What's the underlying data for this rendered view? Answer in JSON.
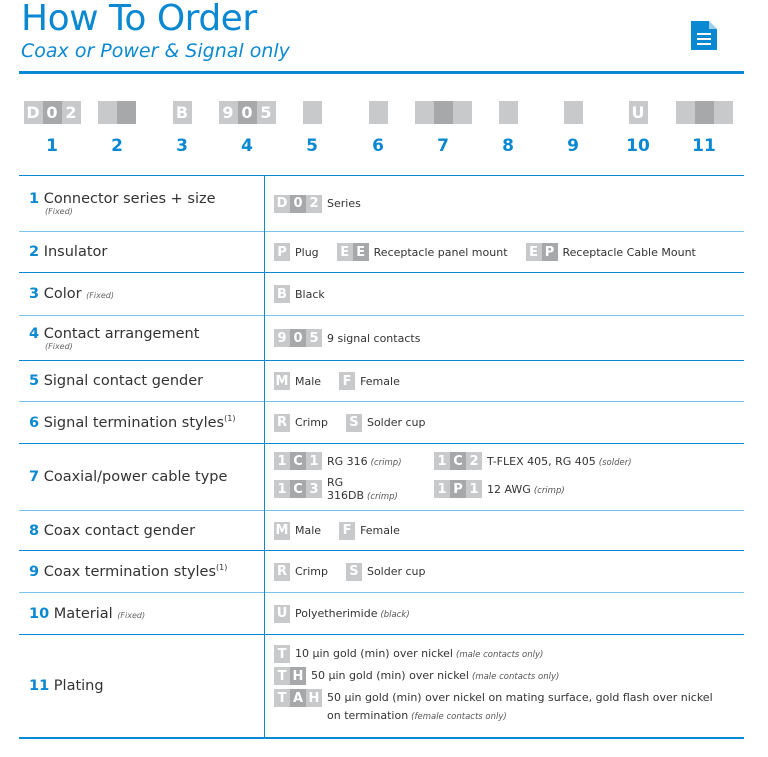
{
  "header": {
    "title": "How To Order",
    "subtitle": "Coax or Power & Signal only",
    "icon": "document-icon"
  },
  "colors": {
    "accent": "#0a89d2",
    "cell_light": "#c8c9cb",
    "cell_dark": "#a7a8aa"
  },
  "code_groups": [
    {
      "number": "1",
      "cells": [
        "D",
        "0",
        "2"
      ]
    },
    {
      "number": "2",
      "cells": [
        "",
        ""
      ]
    },
    {
      "number": "3",
      "cells": [
        "B"
      ]
    },
    {
      "number": "4",
      "cells": [
        "9",
        "0",
        "5"
      ]
    },
    {
      "number": "5",
      "cells": [
        ""
      ]
    },
    {
      "number": "6",
      "cells": [
        ""
      ]
    },
    {
      "number": "7",
      "cells": [
        "",
        "",
        ""
      ]
    },
    {
      "number": "8",
      "cells": [
        ""
      ]
    },
    {
      "number": "9",
      "cells": [
        ""
      ]
    },
    {
      "number": "10",
      "cells": [
        "U"
      ]
    },
    {
      "number": "11",
      "cells": [
        "",
        "",
        ""
      ]
    }
  ],
  "rows": [
    {
      "number": "1",
      "label": "Connector series + size",
      "fixed": "(Fixed)",
      "options": [
        {
          "code": [
            "D",
            "0",
            "2"
          ],
          "text": "Series"
        }
      ]
    },
    {
      "number": "2",
      "label": "Insulator",
      "options": [
        {
          "code": [
            "P"
          ],
          "text": "Plug"
        },
        {
          "code": [
            "E",
            "E"
          ],
          "text": "Receptacle panel mount"
        },
        {
          "code": [
            "E",
            "P"
          ],
          "text": "Receptacle Cable Mount"
        }
      ]
    },
    {
      "number": "3",
      "label": "Color",
      "fixed_inline": "(Fixed)",
      "options": [
        {
          "code": [
            "B"
          ],
          "text": "Black"
        }
      ]
    },
    {
      "number": "4",
      "label": "Contact arrangement",
      "fixed": "(Fixed)",
      "options": [
        {
          "code": [
            "9",
            "0",
            "5"
          ],
          "text": "9 signal contacts"
        }
      ]
    },
    {
      "number": "5",
      "label": "Signal contact gender",
      "options": [
        {
          "code": [
            "M"
          ],
          "text": "Male"
        },
        {
          "code": [
            "F"
          ],
          "text": "Female"
        }
      ]
    },
    {
      "number": "6",
      "label": "Signal termination styles",
      "sup": "(1)",
      "options": [
        {
          "code": [
            "R"
          ],
          "text": "Crimp"
        },
        {
          "code": [
            "S"
          ],
          "text": "Solder cup"
        }
      ]
    },
    {
      "number": "7",
      "label": "Coaxial/power cable type",
      "options": [
        {
          "code": [
            "1",
            "C",
            "1"
          ],
          "text": "RG 316",
          "note": "(crimp)"
        },
        {
          "code": [
            "1",
            "C",
            "2"
          ],
          "text": "T-FLEX 405, RG 405",
          "note": "(solder)"
        },
        {
          "code": [
            "1",
            "C",
            "3"
          ],
          "text": "RG 316DB",
          "note": "(crimp)"
        },
        {
          "code": [
            "1",
            "P",
            "1"
          ],
          "text": "12 AWG",
          "note": "(crimp)"
        }
      ]
    },
    {
      "number": "8",
      "label": "Coax contact gender",
      "options": [
        {
          "code": [
            "M"
          ],
          "text": "Male"
        },
        {
          "code": [
            "F"
          ],
          "text": "Female"
        }
      ]
    },
    {
      "number": "9",
      "label": "Coax termination styles",
      "sup": "(1)",
      "options": [
        {
          "code": [
            "R"
          ],
          "text": "Crimp"
        },
        {
          "code": [
            "S"
          ],
          "text": "Solder cup"
        }
      ]
    },
    {
      "number": "10",
      "label": "Material",
      "fixed_inline": "(Fixed)",
      "options": [
        {
          "code": [
            "U"
          ],
          "text": "Polyetherimide",
          "note": "(black)"
        }
      ]
    },
    {
      "number": "11",
      "label": "Plating",
      "options": [
        {
          "code": [
            "T"
          ],
          "text": "10 µin gold (min) over nickel",
          "note": "(male contacts only)"
        },
        {
          "code": [
            "T",
            "H"
          ],
          "text": "50 µin gold (min) over nickel",
          "note": "(male contacts only)"
        },
        {
          "code": [
            "T",
            "A",
            "H"
          ],
          "text": "50 µin gold (min) over nickel on mating surface, gold flash over nickel on termination",
          "note": "(female contacts only)"
        }
      ]
    }
  ]
}
